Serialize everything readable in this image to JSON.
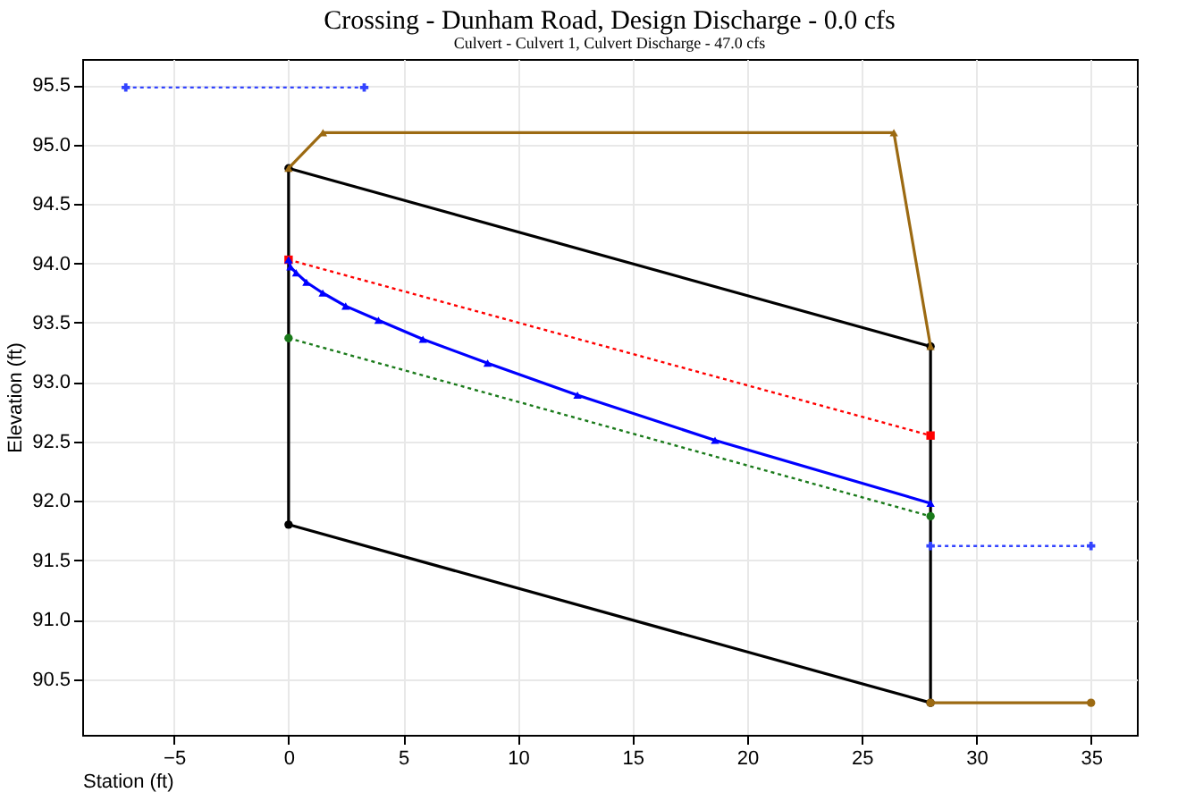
{
  "chart_data": {
    "type": "line",
    "title": "Crossing - Dunham Road, Design Discharge - 0.0 cfs",
    "subtitle": "Culvert - Culvert 1, Culvert Discharge - 47.0 cfs",
    "xlabel": "Station (ft)",
    "ylabel": "Elevation (ft)",
    "xlim": [
      -9,
      37
    ],
    "ylim": [
      90.03,
      95.72
    ],
    "xticks": [
      -5,
      0,
      5,
      10,
      15,
      20,
      25,
      30,
      35
    ],
    "yticks": [
      90.5,
      {
        "value": 91,
        "label": "91.0"
      },
      91.5,
      {
        "value": 92,
        "label": "92.0"
      },
      92.5,
      {
        "value": 93,
        "label": "93.0"
      },
      93.5,
      {
        "value": 94,
        "label": "94.0"
      },
      94.5,
      {
        "value": 95,
        "label": "95.0"
      },
      95.5
    ],
    "grid": true,
    "series": [
      {
        "color": "#3344ff",
        "x": [
          -7.1,
          3.3
        ],
        "values": [
          95.48,
          95.48
        ],
        "marker": "cross",
        "line_style": "dotted"
      },
      {
        "color": "#000000",
        "x": [
          0,
          28
        ],
        "values": [
          94.8,
          93.3
        ],
        "marker": "circle",
        "line_style": "solid"
      },
      {
        "color": "#000000",
        "x": [
          0,
          28
        ],
        "values": [
          91.8,
          90.3
        ],
        "marker": "circle",
        "line_style": "solid"
      },
      {
        "color": "#000000",
        "x": [
          0,
          0
        ],
        "values": [
          91.8,
          94.8
        ],
        "marker": "none",
        "line_style": "solid"
      },
      {
        "color": "#000000",
        "x": [
          28,
          28
        ],
        "values": [
          90.3,
          93.3
        ],
        "marker": "none",
        "line_style": "solid"
      },
      {
        "color": "#9c6a12",
        "x": [
          0,
          1.5,
          26.4,
          28
        ],
        "values": [
          94.8,
          95.1,
          95.1,
          93.3
        ],
        "marker": "triangle",
        "line_style": "solid"
      },
      {
        "color": "#9c6a12",
        "x": [
          28,
          35
        ],
        "values": [
          90.3,
          90.3
        ],
        "marker": "circle",
        "line_style": "solid"
      },
      {
        "color": "#ff0000",
        "x": [
          0,
          28
        ],
        "values": [
          94.03,
          92.55
        ],
        "marker": "square",
        "line_style": "dotted"
      },
      {
        "color": "#1a7a1a",
        "x": [
          0,
          28
        ],
        "values": [
          93.37,
          91.87
        ],
        "marker": "circle",
        "line_style": "dotted"
      },
      {
        "color": "#0000ff",
        "x": [
          0,
          0.08,
          0.33,
          0.78,
          1.49,
          2.49,
          3.92,
          5.86,
          8.68,
          12.6,
          18.6,
          28
        ],
        "values": [
          94.03,
          93.97,
          93.92,
          93.84,
          93.75,
          93.64,
          93.52,
          93.36,
          93.16,
          92.89,
          92.51,
          91.98
        ],
        "marker": "triangle",
        "line_style": "solid"
      },
      {
        "color": "#3344ff",
        "x": [
          28,
          35
        ],
        "values": [
          91.62,
          91.62
        ],
        "marker": "cross",
        "line_style": "dotted"
      }
    ]
  }
}
